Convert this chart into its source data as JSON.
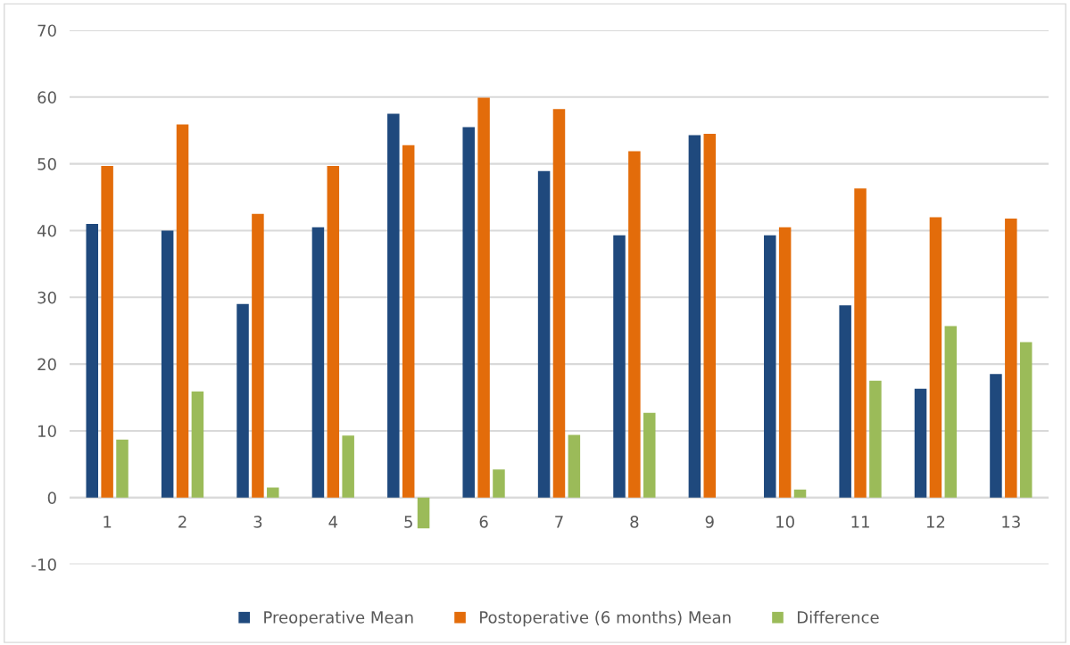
{
  "chart_data": {
    "type": "bar",
    "categories": [
      "1",
      "2",
      "3",
      "4",
      "5",
      "6",
      "7",
      "8",
      "9",
      "10",
      "11",
      "12",
      "13"
    ],
    "series": [
      {
        "name": "Preoperative Mean",
        "color": "#1f497d",
        "values": [
          41.0,
          40.0,
          29.0,
          40.5,
          57.5,
          55.5,
          48.9,
          39.3,
          54.3,
          39.3,
          28.8,
          16.3,
          18.5
        ]
      },
      {
        "name": "Postoperative (6 months) Mean",
        "color": "#e36c0a",
        "values": [
          49.7,
          55.9,
          42.5,
          49.7,
          52.8,
          59.9,
          58.2,
          51.9,
          54.5,
          40.5,
          46.3,
          42.0,
          41.8
        ]
      },
      {
        "name": "Difference",
        "color": "#9bbb59",
        "values": [
          8.7,
          15.9,
          1.5,
          9.3,
          -4.6,
          4.2,
          9.4,
          12.7,
          0,
          1.2,
          17.5,
          25.7,
          23.3
        ]
      }
    ],
    "ylim": [
      -10,
      70
    ],
    "yticks": [
      -10,
      0,
      10,
      20,
      30,
      40,
      50,
      60,
      70
    ],
    "grid": "y",
    "legend": "bottom"
  }
}
